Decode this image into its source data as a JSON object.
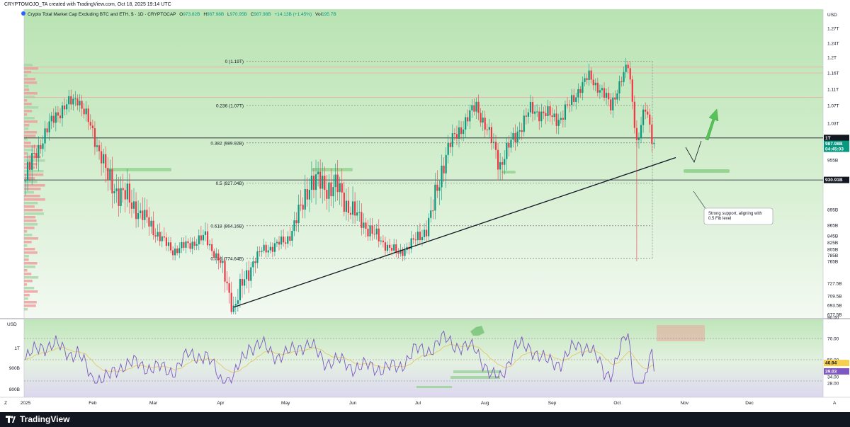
{
  "header": {
    "created_by": "CRYPTOMOJO_TA created with TradingView.com, Oct 18, 2025 19:14 UTC"
  },
  "legend": {
    "symbol": "Crypto Total Market Cap Excluding BTC and ETH, $ · 1D · CRYPTOCAP",
    "open_label": "O",
    "open": "973.82B",
    "high_label": "H",
    "high": "987.98B",
    "low_label": "L",
    "low": "970.95B",
    "close_label": "C",
    "close": "987.98B",
    "change": "+14.13B (+1.45%)",
    "vol_label": "Vol",
    "vol": "195.7B"
  },
  "chart_data": {
    "type": "candlestick",
    "currency": "USD",
    "y_ticks": [
      "1.27T",
      "1.24T",
      "1.2T",
      "1.16T",
      "1.11T",
      "1.07T",
      "1.03T",
      "955B",
      "895B",
      "865B",
      "845B",
      "825B",
      "805B",
      "785B",
      "765B",
      "727.5B",
      "709.5B",
      "693.5B",
      "677.5B"
    ],
    "price_badges": [
      {
        "label": "1T",
        "style": "black"
      },
      {
        "label": "987.98B",
        "sub": "04:45:03",
        "style": "green"
      },
      {
        "label": "930.91B",
        "style": "black"
      }
    ],
    "x_ticks": [
      "2025",
      "Feb",
      "Mar",
      "Apr",
      "May",
      "Jun",
      "Jul",
      "Aug",
      "Sep",
      "Oct",
      "Nov",
      "Dec"
    ],
    "fib_levels": [
      {
        "label": "0 (1.19T)",
        "value": 1.19
      },
      {
        "label": "0.236 (1.07T)",
        "value": 1.07
      },
      {
        "label": "0.382 (989.92B)",
        "value": 0.98992
      },
      {
        "label": "0.5 (927.04B)",
        "value": 0.92704
      },
      {
        "label": "0.618 (864.16B)",
        "value": 0.86416
      },
      {
        "label": "0.786 (774.64B)",
        "value": 0.77464
      }
    ],
    "horizontal_lines": [
      1.16,
      1.175,
      1.09,
      1.0,
      0.93091
    ],
    "trendline": {
      "from": {
        "date": "2025-04-07",
        "value": 0.69
      },
      "to": {
        "date": "2025-10-28",
        "value": 0.96
      }
    },
    "annotation": "Strong support, aligning with 0.5 Fib level",
    "candles": [
      {
        "date": "2025-01-01",
        "close": 0.93
      },
      {
        "date": "2025-01-15",
        "close": 1.05
      },
      {
        "date": "2025-01-25",
        "close": 1.09
      },
      {
        "date": "2025-02-08",
        "close": 0.93
      },
      {
        "date": "2025-02-20",
        "close": 0.9
      },
      {
        "date": "2025-03-01",
        "close": 0.86
      },
      {
        "date": "2025-03-10",
        "close": 0.8
      },
      {
        "date": "2025-03-25",
        "close": 0.84
      },
      {
        "date": "2025-04-07",
        "close": 0.69
      },
      {
        "date": "2025-04-20",
        "close": 0.8
      },
      {
        "date": "2025-05-01",
        "close": 0.83
      },
      {
        "date": "2025-05-12",
        "close": 0.93
      },
      {
        "date": "2025-05-25",
        "close": 0.92
      },
      {
        "date": "2025-06-08",
        "close": 0.86
      },
      {
        "date": "2025-06-22",
        "close": 0.79
      },
      {
        "date": "2025-07-05",
        "close": 0.86
      },
      {
        "date": "2025-07-15",
        "close": 0.98
      },
      {
        "date": "2025-07-28",
        "close": 1.07
      },
      {
        "date": "2025-08-08",
        "close": 0.95
      },
      {
        "date": "2025-08-22",
        "close": 1.06
      },
      {
        "date": "2025-09-05",
        "close": 1.04
      },
      {
        "date": "2025-09-18",
        "close": 1.15
      },
      {
        "date": "2025-09-28",
        "close": 1.07
      },
      {
        "date": "2025-10-06",
        "close": 1.18
      },
      {
        "date": "2025-10-10",
        "close": 0.99
      },
      {
        "date": "2025-10-14",
        "close": 1.06
      },
      {
        "date": "2025-10-18",
        "close": 0.98798
      }
    ],
    "rsi_panel": {
      "currency": "USD",
      "left_ticks": [
        "1T",
        "900B",
        "800B"
      ],
      "right_ticks": [
        "90.00",
        "70.00",
        "50.00",
        "34.00",
        "28.00"
      ],
      "rsi_badge": "39.03",
      "ma_badge": "46.94"
    }
  }
}
